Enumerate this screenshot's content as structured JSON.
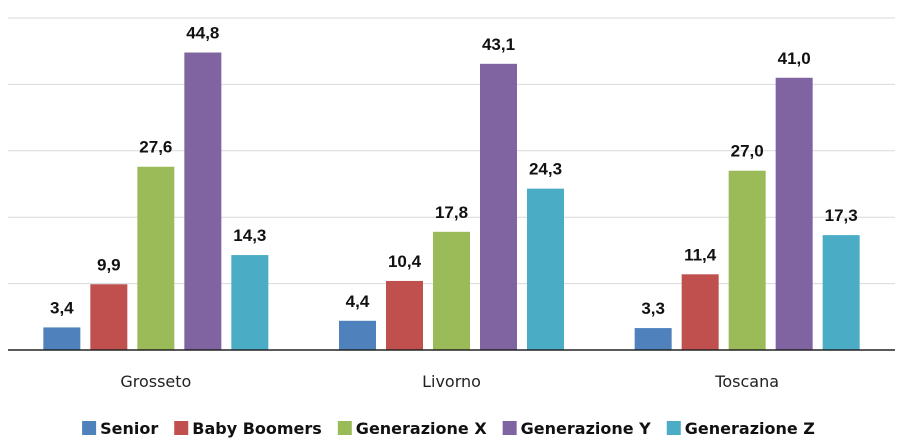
{
  "chart_data": {
    "type": "bar",
    "categories": [
      "Grosseto",
      "Livorno",
      "Toscana"
    ],
    "series": [
      {
        "name": "Senior",
        "color": "#4f81bd",
        "values": [
          3.4,
          4.4,
          3.3
        ],
        "labels": [
          "3,4",
          "4,4",
          "3,3"
        ]
      },
      {
        "name": "Baby Boomers",
        "color": "#c0504d",
        "values": [
          9.9,
          10.4,
          11.4
        ],
        "labels": [
          "9,9",
          "10,4",
          "11,4"
        ]
      },
      {
        "name": "Generazione X",
        "color": "#9bbb59",
        "values": [
          27.6,
          17.8,
          27.0
        ],
        "labels": [
          "27,6",
          "17,8",
          "27,0"
        ]
      },
      {
        "name": "Generazione Y",
        "color": "#8064a2",
        "values": [
          44.8,
          43.1,
          41.0
        ],
        "labels": [
          "44,8",
          "43,1",
          "41,0"
        ]
      },
      {
        "name": "Generazione Z",
        "color": "#4bacc6",
        "values": [
          14.3,
          24.3,
          17.3
        ],
        "labels": [
          "14,3",
          "24,3",
          "17,3"
        ]
      }
    ],
    "title": "",
    "xlabel": "",
    "ylabel": "",
    "ylim": [
      0,
      50
    ],
    "grid": true,
    "legend": "bottom"
  }
}
